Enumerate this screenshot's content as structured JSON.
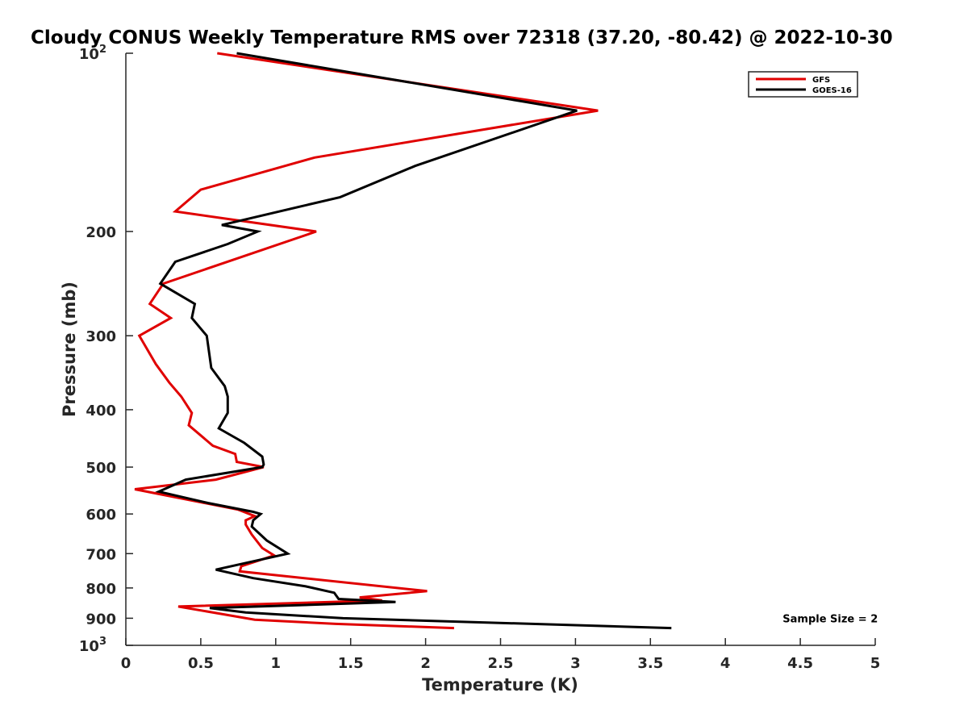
{
  "chart_data": {
    "type": "line",
    "title": "Cloudy CONUS Weekly Temperature RMS over 72318 (37.20, -80.42) @ 2022-10-30",
    "xlabel": "Temperature (K)",
    "ylabel": "Pressure (mb)",
    "xlim": [
      0,
      5
    ],
    "ylim": [
      100,
      1000
    ],
    "y_scale": "log",
    "y_reversed": true,
    "grid": false,
    "legend_position": "top-right",
    "x_ticks": [
      {
        "value": 0,
        "label": "0"
      },
      {
        "value": 0.5,
        "label": "0.5"
      },
      {
        "value": 1,
        "label": "1"
      },
      {
        "value": 1.5,
        "label": "1.5"
      },
      {
        "value": 2,
        "label": "2"
      },
      {
        "value": 2.5,
        "label": "2.5"
      },
      {
        "value": 3,
        "label": "3"
      },
      {
        "value": 3.5,
        "label": "3.5"
      },
      {
        "value": 4,
        "label": "4"
      },
      {
        "value": 4.5,
        "label": "4.5"
      },
      {
        "value": 5,
        "label": "5"
      }
    ],
    "y_ticks": [
      {
        "value": 100,
        "label": "10",
        "exp": "2"
      },
      {
        "value": 200,
        "label": "200"
      },
      {
        "value": 300,
        "label": "300"
      },
      {
        "value": 400,
        "label": "400"
      },
      {
        "value": 500,
        "label": "500"
      },
      {
        "value": 600,
        "label": "600"
      },
      {
        "value": 700,
        "label": "700"
      },
      {
        "value": 800,
        "label": "800"
      },
      {
        "value": 900,
        "label": "900"
      },
      {
        "value": 1000,
        "label": "10",
        "exp": "3"
      }
    ],
    "series": [
      {
        "name": "GFS",
        "color": "#e00000",
        "points": [
          [
            0.61,
            100
          ],
          [
            3.15,
            125
          ],
          [
            1.26,
            150
          ],
          [
            0.5,
            170
          ],
          [
            0.33,
            185
          ],
          [
            1.27,
            200
          ],
          [
            0.25,
            245
          ],
          [
            0.16,
            265
          ],
          [
            0.3,
            280
          ],
          [
            0.09,
            300
          ],
          [
            0.2,
            335
          ],
          [
            0.29,
            360
          ],
          [
            0.37,
            380
          ],
          [
            0.44,
            405
          ],
          [
            0.42,
            425
          ],
          [
            0.58,
            460
          ],
          [
            0.73,
            475
          ],
          [
            0.74,
            490
          ],
          [
            0.92,
            500
          ],
          [
            0.6,
            525
          ],
          [
            0.06,
            545
          ],
          [
            0.75,
            590
          ],
          [
            0.86,
            605
          ],
          [
            0.8,
            615
          ],
          [
            0.8,
            625
          ],
          [
            0.84,
            650
          ],
          [
            0.91,
            685
          ],
          [
            0.99,
            705
          ],
          [
            0.77,
            735
          ],
          [
            0.76,
            750
          ],
          [
            2.01,
            810
          ],
          [
            1.56,
            830
          ],
          [
            1.71,
            840
          ],
          [
            0.35,
            860
          ],
          [
            0.86,
            905
          ],
          [
            1.4,
            920
          ],
          [
            2.19,
            935
          ]
        ]
      },
      {
        "name": "GOES-16",
        "color": "#000000",
        "points": [
          [
            0.74,
            100
          ],
          [
            3.01,
            125
          ],
          [
            1.93,
            155
          ],
          [
            1.43,
            175
          ],
          [
            0.64,
            195
          ],
          [
            0.88,
            200
          ],
          [
            0.68,
            210
          ],
          [
            0.33,
            225
          ],
          [
            0.23,
            245
          ],
          [
            0.46,
            265
          ],
          [
            0.44,
            280
          ],
          [
            0.54,
            300
          ],
          [
            0.57,
            340
          ],
          [
            0.66,
            365
          ],
          [
            0.68,
            380
          ],
          [
            0.68,
            405
          ],
          [
            0.62,
            430
          ],
          [
            0.79,
            455
          ],
          [
            0.91,
            480
          ],
          [
            0.92,
            495
          ],
          [
            0.91,
            500
          ],
          [
            0.4,
            525
          ],
          [
            0.22,
            550
          ],
          [
            0.55,
            575
          ],
          [
            0.85,
            595
          ],
          [
            0.9,
            600
          ],
          [
            0.85,
            615
          ],
          [
            0.84,
            630
          ],
          [
            0.94,
            665
          ],
          [
            1.08,
            700
          ],
          [
            0.6,
            745
          ],
          [
            0.85,
            770
          ],
          [
            1.2,
            795
          ],
          [
            1.39,
            815
          ],
          [
            1.42,
            835
          ],
          [
            1.8,
            845
          ],
          [
            0.56,
            865
          ],
          [
            0.8,
            880
          ],
          [
            1.45,
            900
          ],
          [
            3.64,
            935
          ]
        ]
      }
    ],
    "annotations": [
      {
        "text": "Sample Size = 2",
        "x": 4.7,
        "y": 900
      }
    ]
  }
}
